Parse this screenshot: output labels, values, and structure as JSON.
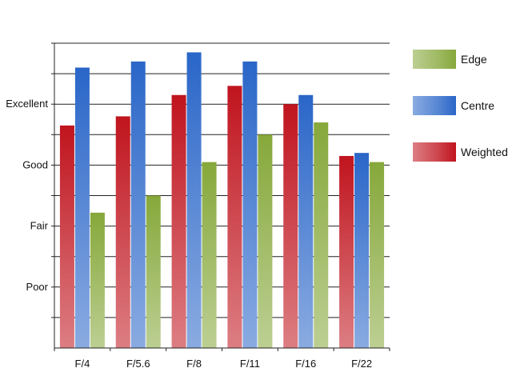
{
  "chart_data": {
    "type": "bar",
    "title": "",
    "xlabel": "",
    "ylabel": "",
    "categories": [
      "F/4",
      "F/5.6",
      "F/8",
      "F/11",
      "F/16",
      "F/22"
    ],
    "y_tick_labels": [
      {
        "value": 1,
        "label": "Poor"
      },
      {
        "value": 2,
        "label": "Fair"
      },
      {
        "value": 3,
        "label": "Good"
      },
      {
        "value": 4,
        "label": "Excellent"
      }
    ],
    "ylim": [
      0,
      5
    ],
    "grid": true,
    "legend_placement": "right",
    "series": [
      {
        "name": "Weighted",
        "values": [
          3.65,
          3.8,
          4.15,
          4.3,
          4.0,
          3.15
        ],
        "color": "#c0141e"
      },
      {
        "name": "Centre",
        "values": [
          4.6,
          4.7,
          4.85,
          4.7,
          4.15,
          3.2
        ],
        "color": "#2a66c8"
      },
      {
        "name": "Edge",
        "values": [
          2.22,
          2.5,
          3.05,
          3.5,
          3.7,
          3.05
        ],
        "color": "#86a83a"
      }
    ],
    "legend_order": [
      "Edge",
      "Centre",
      "Weighted"
    ]
  }
}
